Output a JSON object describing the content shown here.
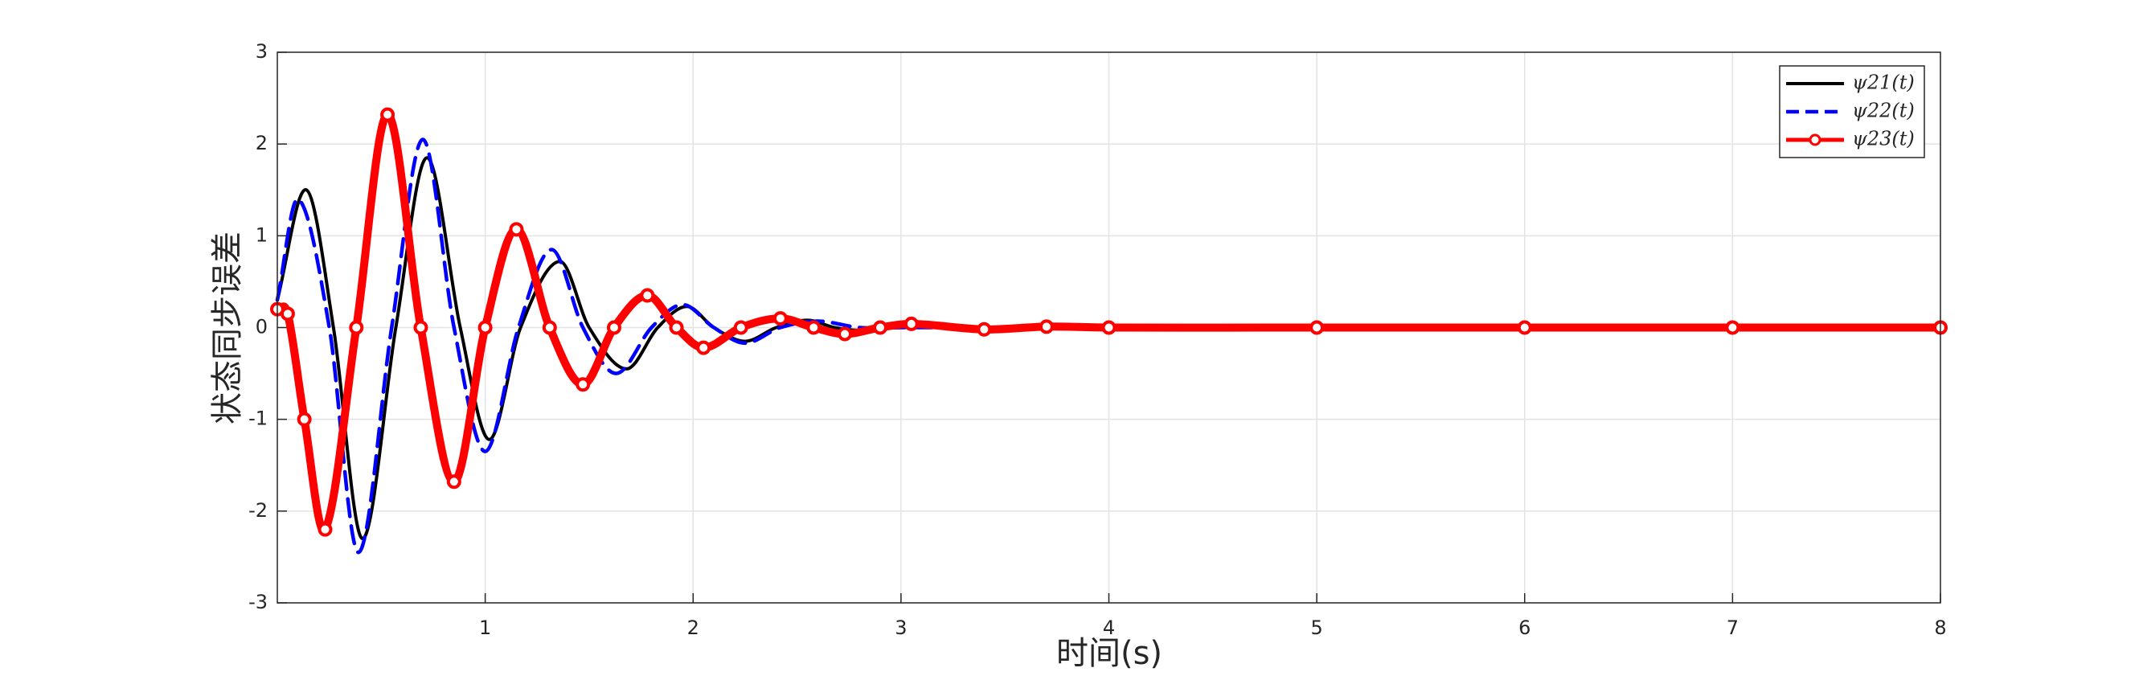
{
  "chart_data": {
    "type": "line",
    "xlabel": "时间(s)",
    "ylabel": "状态同步误差",
    "xlim": [
      0,
      8
    ],
    "xticks": [
      1,
      2,
      3,
      4,
      5,
      6,
      7,
      8
    ],
    "ylim": [
      -3,
      3
    ],
    "yticks": [
      -3,
      -2,
      -1,
      0,
      1,
      2,
      3
    ],
    "grid": true,
    "legend": "upper right",
    "series": [
      {
        "name": "ψ21(t)",
        "color": "#000000",
        "style": "solid",
        "marker": "none",
        "x": [
          0,
          0.14,
          0.27,
          0.41,
          0.57,
          0.72,
          0.88,
          1.02,
          1.17,
          1.36,
          1.5,
          1.68,
          1.83,
          1.97,
          2.1,
          2.25,
          2.4,
          2.55,
          2.68,
          2.8,
          3,
          4,
          5,
          6,
          7,
          8
        ],
        "values": [
          0.3,
          1.5,
          0,
          -2.3,
          0,
          1.85,
          0,
          -1.22,
          0,
          0.72,
          0,
          -0.45,
          0,
          0.23,
          0,
          -0.15,
          0,
          0.08,
          0,
          -0.03,
          0,
          0,
          0,
          0,
          0,
          0
        ]
      },
      {
        "name": "ψ22(t)",
        "color": "#0000ff",
        "style": "dashed",
        "marker": "none",
        "x": [
          0,
          0.1,
          0.25,
          0.39,
          0.55,
          0.7,
          0.85,
          1.0,
          1.16,
          1.32,
          1.47,
          1.63,
          1.8,
          1.95,
          2.1,
          2.25,
          2.42,
          2.6,
          2.8,
          3,
          4,
          5,
          6,
          7,
          8
        ],
        "values": [
          0.3,
          1.4,
          0,
          -2.45,
          0,
          2.05,
          0,
          -1.35,
          0,
          0.85,
          0,
          -0.5,
          0,
          0.25,
          0,
          -0.17,
          0,
          0.07,
          0,
          0,
          0,
          0,
          0,
          0,
          0
        ]
      },
      {
        "name": "ψ23(t)",
        "color": "#ff0000",
        "style": "dotted",
        "marker": "o",
        "x": [
          0,
          0.05,
          0.13,
          0.23,
          0.38,
          0.53,
          0.69,
          0.85,
          1.0,
          1.15,
          1.31,
          1.47,
          1.62,
          1.78,
          1.92,
          2.05,
          2.23,
          2.42,
          2.58,
          2.73,
          2.9,
          3.05,
          3.4,
          3.7,
          4,
          5,
          6,
          7,
          8
        ],
        "values": [
          0.2,
          0.15,
          -1,
          -2.2,
          0,
          2.32,
          0,
          -1.68,
          0,
          1.07,
          0,
          -0.62,
          0,
          0.35,
          0,
          -0.22,
          0,
          0.1,
          0,
          -0.07,
          0,
          0.04,
          -0.02,
          0.01,
          0,
          0,
          0,
          0,
          0
        ]
      }
    ]
  }
}
